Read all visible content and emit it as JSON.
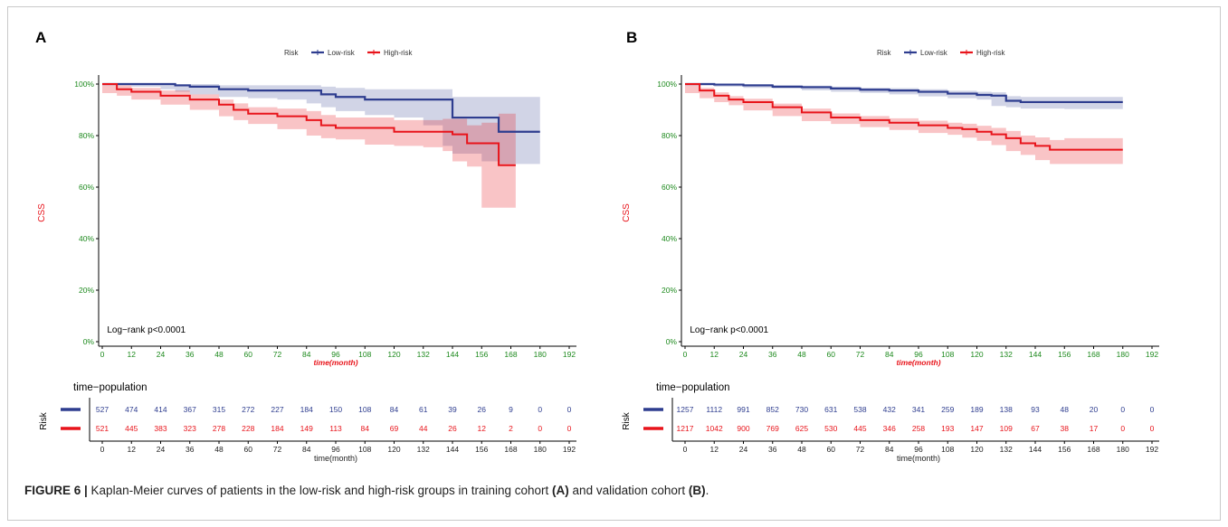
{
  "caption": {
    "prefix": "FIGURE 6 |",
    "text1": " Kaplan-Meier curves of patients in the low-risk and high-risk groups in training cohort ",
    "ref_a": "(A)",
    "text2": " and validation cohort ",
    "ref_b": "(B)",
    "text3": "."
  },
  "colors": {
    "low": "#2e3d8f",
    "high": "#e8141b",
    "y_tick": "#1e8a1e",
    "x_tick_main": "#1e8a1e"
  },
  "chart_data": [
    {
      "type": "line",
      "panel_label": "A",
      "legend_title": "Risk",
      "legend_position": "top-center",
      "series": [
        {
          "name": "Low-risk",
          "x": [
            0,
            6,
            12,
            24,
            30,
            36,
            48,
            60,
            72,
            84,
            90,
            96,
            108,
            120,
            132,
            140,
            144,
            156,
            163,
            168,
            180
          ],
          "y": [
            100,
            100,
            100,
            100,
            99.5,
            99,
            98,
            97.5,
            97.5,
            97.5,
            96,
            95,
            94,
            94,
            94,
            94,
            87,
            87,
            81.5,
            81.5,
            81.5
          ],
          "ci_low": [
            100,
            100,
            99.5,
            99,
            98,
            97,
            96,
            95,
            94.5,
            94,
            92.5,
            91,
            89.5,
            88,
            87,
            84,
            76,
            73,
            70,
            69,
            69
          ],
          "ci_high": [
            100,
            100,
            100,
            100,
            100,
            100,
            99.5,
            99.5,
            99.5,
            99.5,
            99,
            98.5,
            98,
            98,
            98,
            98,
            95,
            95,
            95,
            95,
            95
          ]
        },
        {
          "name": "High-risk",
          "x": [
            0,
            6,
            12,
            24,
            36,
            48,
            54,
            60,
            72,
            84,
            90,
            96,
            108,
            120,
            132,
            140,
            144,
            150,
            156,
            163,
            168,
            170
          ],
          "y": [
            100,
            98,
            97,
            95.5,
            94,
            92,
            90,
            88.5,
            87.5,
            86,
            84,
            83,
            83,
            81.5,
            81.5,
            81.5,
            80.5,
            77,
            77,
            68.5,
            68.5,
            68.5
          ],
          "ci_low": [
            100,
            96.5,
            95.5,
            94,
            92,
            90,
            87.5,
            86,
            84.5,
            82.5,
            80,
            79,
            78.5,
            76.5,
            76,
            75.5,
            74,
            70,
            68,
            52,
            52,
            52
          ],
          "ci_high": [
            100,
            99.5,
            98.5,
            97.5,
            96,
            94,
            92.5,
            91,
            90.5,
            89.5,
            88,
            87,
            87,
            86,
            86,
            86.5,
            86.5,
            84,
            85,
            88.5,
            88.5,
            88.5
          ]
        }
      ],
      "ylabel": "CSS",
      "xlabel": "time(month)",
      "y_ticks": [
        0,
        20,
        40,
        60,
        80,
        100
      ],
      "y_tick_labels": [
        "0%",
        "20%",
        "40%",
        "60%",
        "80%",
        "100%"
      ],
      "x_ticks": [
        0,
        12,
        24,
        36,
        48,
        60,
        72,
        84,
        96,
        108,
        120,
        132,
        144,
        156,
        168,
        180,
        192
      ],
      "x_tick_labels": [
        "0",
        "12",
        "24",
        "36",
        "48",
        "60",
        "72",
        "84",
        "96",
        "108",
        "120",
        "132",
        "144",
        "156",
        "168",
        "180",
        "192"
      ],
      "xlim": [
        0,
        192
      ],
      "ylim": [
        0,
        100
      ],
      "annotation": "Log−rank    p<0.0001",
      "risk_table": {
        "title": "time−population",
        "ylabel": "Risk",
        "xlabel": "time(month)",
        "low": [
          "527",
          "474",
          "414",
          "367",
          "315",
          "272",
          "227",
          "184",
          "150",
          "108",
          "84",
          "61",
          "39",
          "26",
          "9",
          "0",
          "0"
        ],
        "high": [
          "521",
          "445",
          "383",
          "323",
          "278",
          "228",
          "184",
          "149",
          "113",
          "84",
          "69",
          "44",
          "26",
          "12",
          "2",
          "0",
          "0"
        ]
      }
    },
    {
      "type": "line",
      "panel_label": "B",
      "legend_title": "Risk",
      "legend_position": "top-center",
      "series": [
        {
          "name": "Low-risk",
          "x": [
            0,
            6,
            12,
            24,
            36,
            48,
            60,
            72,
            84,
            96,
            108,
            120,
            126,
            132,
            138,
            144,
            156,
            168,
            180
          ],
          "y": [
            100,
            100,
            99.8,
            99.5,
            99,
            98.8,
            98.3,
            97.8,
            97.5,
            97,
            96.3,
            95.8,
            95.5,
            93.5,
            93,
            93,
            93,
            93,
            93
          ],
          "ci_low": [
            100,
            99.7,
            99.5,
            99,
            98.5,
            98.2,
            97.6,
            97,
            96.6,
            96,
            95.2,
            94.5,
            94,
            91.5,
            91,
            90.5,
            90.5,
            90.3,
            90.3
          ],
          "ci_high": [
            100,
            100,
            100,
            100,
            99.5,
            99.4,
            99,
            98.6,
            98.4,
            98,
            97.4,
            97,
            96.8,
            95.3,
            95,
            95,
            95,
            95,
            95
          ]
        },
        {
          "name": "High-risk",
          "x": [
            0,
            6,
            12,
            18,
            24,
            36,
            48,
            60,
            72,
            84,
            96,
            108,
            114,
            120,
            126,
            132,
            138,
            144,
            150,
            156,
            168,
            180
          ],
          "y": [
            100,
            97.5,
            95.5,
            94,
            93,
            91,
            89,
            87,
            86,
            85,
            84,
            83,
            82.5,
            81.5,
            80.5,
            79,
            77,
            76,
            74.5,
            74.5,
            74.5,
            74.5
          ],
          "ci_low": [
            100,
            96.5,
            94.5,
            93,
            91.8,
            89.8,
            87.6,
            85.6,
            84.5,
            83.3,
            82.2,
            81,
            80.3,
            79.2,
            78,
            76.3,
            74,
            72.5,
            70.5,
            69,
            69,
            69
          ],
          "ci_high": [
            100,
            98.5,
            96.8,
            95.3,
            94.3,
            92.4,
            90.5,
            88.6,
            87.6,
            86.7,
            85.8,
            85,
            84.6,
            83.8,
            83,
            81.8,
            80,
            79.3,
            78.3,
            79,
            79,
            79
          ]
        }
      ],
      "ylabel": "CSS",
      "xlabel": "time(month)",
      "y_ticks": [
        0,
        20,
        40,
        60,
        80,
        100
      ],
      "y_tick_labels": [
        "0%",
        "20%",
        "40%",
        "60%",
        "80%",
        "100%"
      ],
      "x_ticks": [
        0,
        12,
        24,
        36,
        48,
        60,
        72,
        84,
        96,
        108,
        120,
        132,
        144,
        156,
        168,
        180,
        192
      ],
      "x_tick_labels": [
        "0",
        "12",
        "24",
        "36",
        "48",
        "60",
        "72",
        "84",
        "96",
        "108",
        "120",
        "132",
        "144",
        "156",
        "168",
        "180",
        "192"
      ],
      "xlim": [
        0,
        192
      ],
      "ylim": [
        0,
        100
      ],
      "annotation": "Log−rank    p<0.0001",
      "risk_table": {
        "title": "time−population",
        "ylabel": "Risk",
        "xlabel": "time(month)",
        "low": [
          "1257",
          "1112",
          "991",
          "852",
          "730",
          "631",
          "538",
          "432",
          "341",
          "259",
          "189",
          "138",
          "93",
          "48",
          "20",
          "0",
          "0"
        ],
        "high": [
          "1217",
          "1042",
          "900",
          "769",
          "625",
          "530",
          "445",
          "346",
          "258",
          "193",
          "147",
          "109",
          "67",
          "38",
          "17",
          "0",
          "0"
        ]
      }
    }
  ]
}
